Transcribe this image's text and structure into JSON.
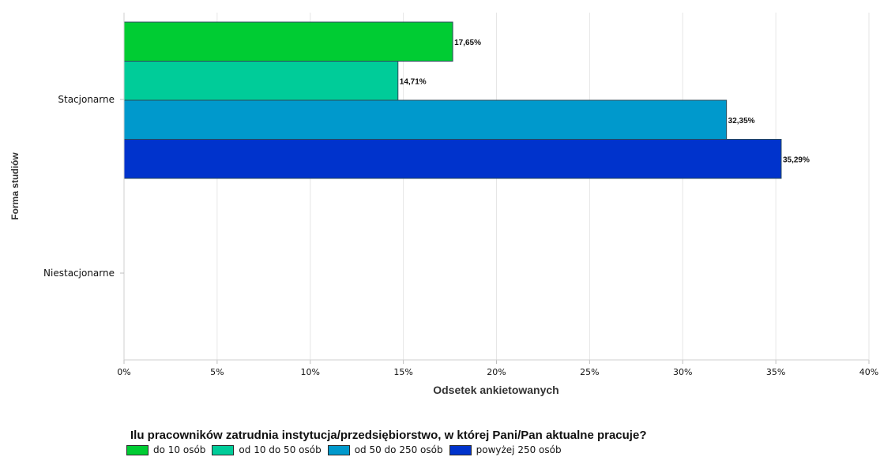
{
  "chart_data": {
    "type": "bar",
    "orientation": "horizontal",
    "categories": [
      "Stacjonarne",
      "Niestacjonarne"
    ],
    "series": [
      {
        "name": "do 10 osób",
        "color": "#00cc33",
        "values": [
          17.65,
          null
        ],
        "labels": [
          "17,65%",
          ""
        ]
      },
      {
        "name": "od 10 do 50 osób",
        "color": "#00cc99",
        "values": [
          14.71,
          null
        ],
        "labels": [
          "14,71%",
          ""
        ]
      },
      {
        "name": "od 50 do 250 osób",
        "color": "#0099cc",
        "values": [
          32.35,
          null
        ],
        "labels": [
          "32,35%",
          ""
        ]
      },
      {
        "name": "powyżej 250 osób",
        "color": "#0033cc",
        "values": [
          35.29,
          null
        ],
        "labels": [
          "35,29%",
          ""
        ]
      }
    ],
    "xticks": [
      "0%",
      "5%",
      "10%",
      "15%",
      "20%",
      "25%",
      "30%",
      "35%",
      "40%"
    ],
    "xlim": [
      0,
      40
    ],
    "xlabel": "Odsetek ankietowanych",
    "ylabel": "Forma studiów",
    "legend_title": "Ilu pracowników zatrudnia instytucja/przedsiębiorstwo, w której Pani/Pan aktualne pracuje?",
    "legend_position": "bottom",
    "grid": true
  }
}
